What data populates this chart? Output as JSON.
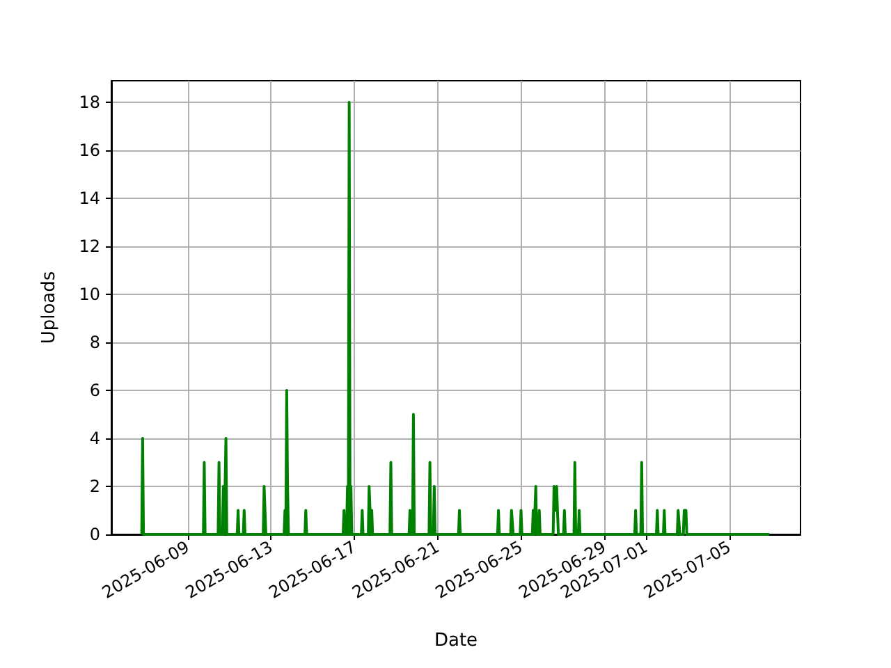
{
  "chart_data": {
    "type": "line",
    "xlabel": "Date",
    "ylabel": "Uploads",
    "grid": true,
    "x": [
      "2025-06-06T19:00",
      "2025-06-06T20:00",
      "2025-06-06T21:00",
      "2025-06-09T18:00",
      "2025-06-09T19:00",
      "2025-06-09T20:00",
      "2025-06-10T11:00",
      "2025-06-10T12:00",
      "2025-06-10T13:00",
      "2025-06-10T16:00",
      "2025-06-10T17:00",
      "2025-06-10T18:00",
      "2025-06-10T19:00",
      "2025-06-10T20:00",
      "2025-06-10T21:00",
      "2025-06-11T09:00",
      "2025-06-11T10:00",
      "2025-06-11T11:00",
      "2025-06-11T16:00",
      "2025-06-11T17:00",
      "2025-06-11T18:00",
      "2025-06-12T15:00",
      "2025-06-12T16:00",
      "2025-06-12T17:00",
      "2025-06-12T18:00",
      "2025-06-13T15:00",
      "2025-06-13T16:00",
      "2025-06-13T17:00",
      "2025-06-13T18:00",
      "2025-06-13T19:00",
      "2025-06-13T20:00",
      "2025-06-14T15:00",
      "2025-06-14T16:00",
      "2025-06-14T17:00",
      "2025-06-16T11:00",
      "2025-06-16T12:00",
      "2025-06-16T13:00",
      "2025-06-16T15:00",
      "2025-06-16T16:00",
      "2025-06-16T17:00",
      "2025-06-16T18:00",
      "2025-06-16T19:00",
      "2025-06-16T20:00",
      "2025-06-16T21:00",
      "2025-06-17T08:00",
      "2025-06-17T09:00",
      "2025-06-17T10:00",
      "2025-06-17T16:00",
      "2025-06-17T17:00",
      "2025-06-17T18:00",
      "2025-06-17T19:00",
      "2025-06-17T20:00",
      "2025-06-17T21:00",
      "2025-06-18T17:00",
      "2025-06-18T18:00",
      "2025-06-18T19:00",
      "2025-06-19T15:00",
      "2025-06-19T16:00",
      "2025-06-19T17:00",
      "2025-06-19T19:00",
      "2025-06-19T20:00",
      "2025-06-19T21:00",
      "2025-06-20T14:00",
      "2025-06-20T15:00",
      "2025-06-20T16:00",
      "2025-06-20T19:00",
      "2025-06-20T20:00",
      "2025-06-20T21:00",
      "2025-06-22T00:00",
      "2025-06-22T01:00",
      "2025-06-22T02:00",
      "2025-06-23T21:00",
      "2025-06-23T22:00",
      "2025-06-23T23:00",
      "2025-06-24T12:00",
      "2025-06-24T13:00",
      "2025-06-24T14:00",
      "2025-06-24T15:00",
      "2025-06-24T23:00",
      "2025-06-25T00:00",
      "2025-06-25T01:00",
      "2025-06-25T13:00",
      "2025-06-25T14:00",
      "2025-06-25T15:00",
      "2025-06-25T16:00",
      "2025-06-25T17:00",
      "2025-06-25T18:00",
      "2025-06-25T20:00",
      "2025-06-25T21:00",
      "2025-06-25T22:00",
      "2025-06-26T13:00",
      "2025-06-26T14:00",
      "2025-06-26T15:00",
      "2025-06-26T16:00",
      "2025-06-26T17:00",
      "2025-06-26T18:00",
      "2025-06-26T19:00",
      "2025-06-27T01:00",
      "2025-06-27T02:00",
      "2025-06-27T03:00",
      "2025-06-27T13:00",
      "2025-06-27T14:00",
      "2025-06-27T15:00",
      "2025-06-27T18:00",
      "2025-06-27T19:00",
      "2025-06-27T20:00",
      "2025-06-30T11:00",
      "2025-06-30T12:00",
      "2025-06-30T13:00",
      "2025-06-30T18:00",
      "2025-06-30T19:00",
      "2025-06-30T20:00",
      "2025-07-01T12:00",
      "2025-07-01T13:00",
      "2025-07-01T14:00",
      "2025-07-01T20:00",
      "2025-07-01T21:00",
      "2025-07-01T22:00",
      "2025-07-02T12:00",
      "2025-07-02T13:00",
      "2025-07-02T14:00",
      "2025-07-02T15:00",
      "2025-07-02T19:00",
      "2025-07-02T20:00",
      "2025-07-02T21:00",
      "2025-07-02T22:00",
      "2025-07-02T23:00",
      "2025-07-06T22:00"
    ],
    "series": [
      {
        "color": "#008000",
        "values": [
          0,
          4,
          0,
          0,
          3,
          0,
          0,
          3,
          0,
          0,
          2,
          0,
          0,
          4,
          0,
          0,
          1,
          0,
          0,
          1,
          0,
          0,
          2,
          1,
          0,
          0,
          1,
          0,
          6,
          2,
          0,
          0,
          1,
          0,
          0,
          1,
          0,
          0,
          2,
          0,
          18,
          0,
          2,
          0,
          0,
          1,
          0,
          0,
          2,
          2,
          0,
          1,
          0,
          0,
          3,
          0,
          0,
          1,
          0,
          0,
          5,
          0,
          0,
          3,
          0,
          0,
          2,
          0,
          0,
          1,
          0,
          0,
          1,
          0,
          0,
          1,
          1,
          0,
          0,
          1,
          0,
          0,
          1,
          0,
          0,
          2,
          0,
          0,
          1,
          0,
          0,
          2,
          2,
          1,
          2,
          2,
          0,
          0,
          1,
          0,
          0,
          3,
          0,
          0,
          1,
          0,
          0,
          1,
          0,
          0,
          3,
          0,
          0,
          1,
          0,
          0,
          1,
          0,
          0,
          1,
          1,
          0,
          0,
          1,
          1,
          1,
          0,
          0
        ]
      }
    ],
    "xlim": [
      "2025-06-05T08:00",
      "2025-07-08T10:00"
    ],
    "xticks": [
      "2025-06-09",
      "2025-06-13",
      "2025-06-17",
      "2025-06-21",
      "2025-06-25",
      "2025-06-29",
      "2025-07-01",
      "2025-07-05"
    ],
    "ylim": [
      0,
      18.9
    ],
    "yticks": [
      0,
      2,
      4,
      6,
      8,
      10,
      12,
      14,
      16,
      18
    ]
  }
}
